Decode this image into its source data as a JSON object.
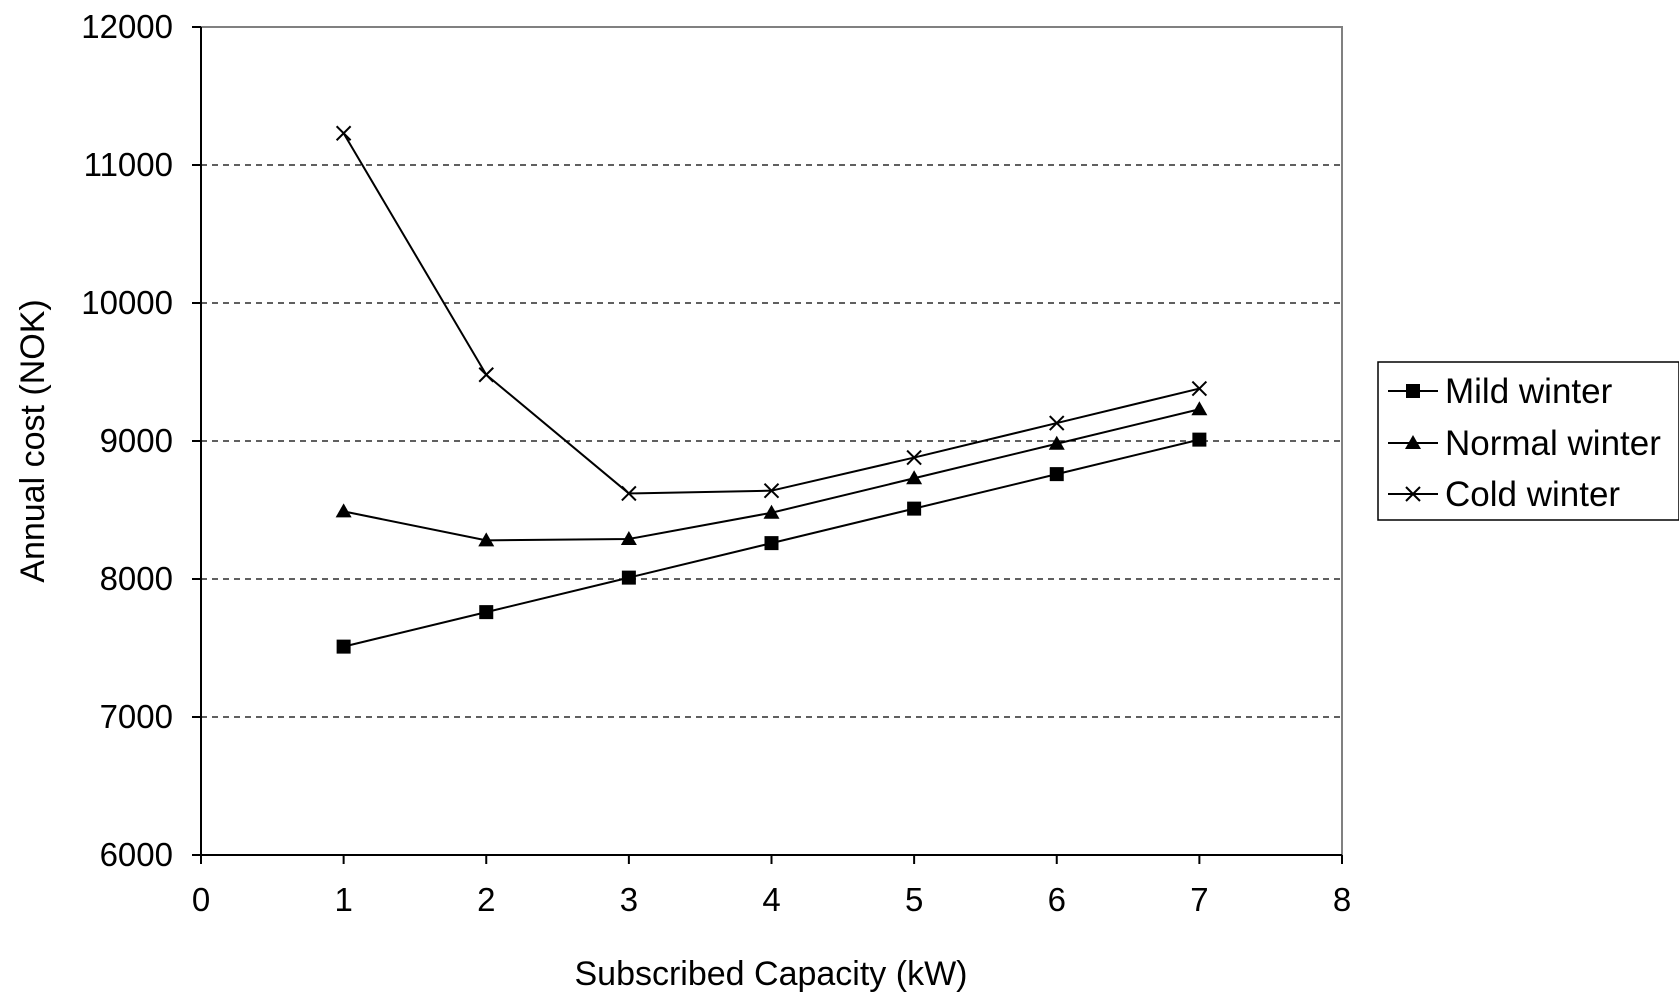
{
  "chart_data": {
    "type": "line",
    "title": "",
    "xlabel": "Subscribed Capacity (kW)",
    "ylabel": "Annual cost (NOK)",
    "xlim": [
      0,
      8
    ],
    "ylim": [
      6000,
      12000
    ],
    "xticks": [
      "0",
      "1",
      "2",
      "3",
      "4",
      "5",
      "6",
      "7",
      "8"
    ],
    "yticks": [
      "6000",
      "7000",
      "8000",
      "9000",
      "10000",
      "11000",
      "12000"
    ],
    "grid": "horizontal dashed",
    "legend_position": "right",
    "x": [
      1,
      2,
      3,
      4,
      5,
      6,
      7
    ],
    "series": [
      {
        "name": "Mild winter",
        "marker": "square",
        "values": [
          7510,
          7760,
          8010,
          8260,
          8510,
          8760,
          9010
        ]
      },
      {
        "name": "Normal winter",
        "marker": "triangle",
        "values": [
          8490,
          8280,
          8290,
          8480,
          8730,
          8980,
          9230
        ]
      },
      {
        "name": "Cold winter",
        "marker": "x",
        "values": [
          11230,
          9480,
          8620,
          8640,
          8880,
          9130,
          9380
        ]
      }
    ]
  }
}
